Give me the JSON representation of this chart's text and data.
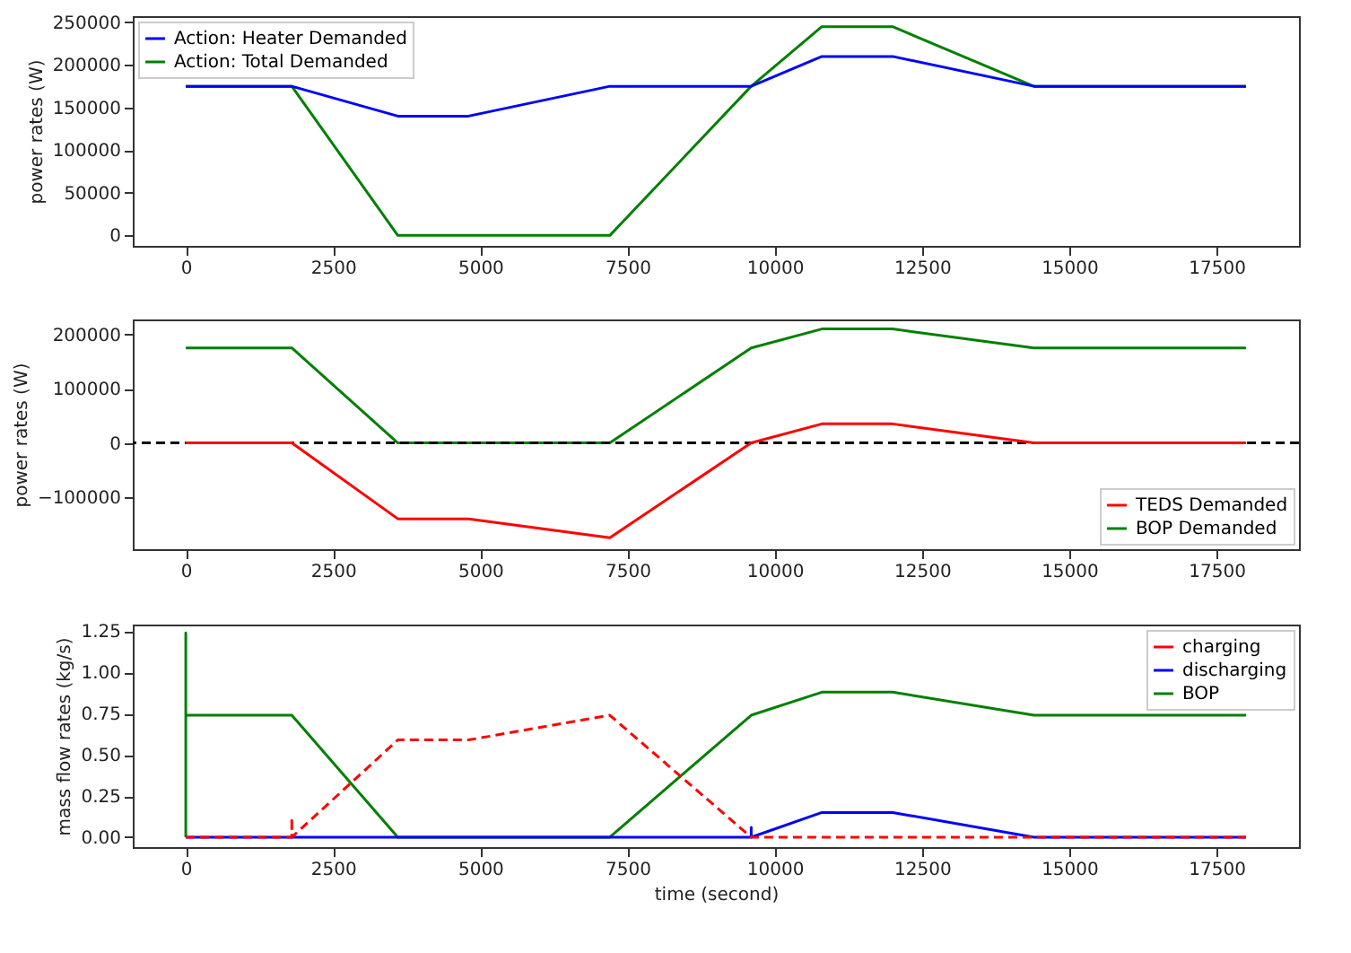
{
  "chart_data": [
    {
      "type": "line",
      "ylabel": "power rates (W)",
      "x": [
        0,
        1800,
        3600,
        4800,
        7200,
        9600,
        10800,
        12000,
        14400,
        18000
      ],
      "xlim": [
        -900,
        18900
      ],
      "xticks": [
        0,
        2500,
        5000,
        7500,
        10000,
        12500,
        15000,
        17500
      ],
      "ylim": [
        -12250,
        257250
      ],
      "yticks": [
        0,
        50000,
        100000,
        150000,
        200000,
        250000
      ],
      "grid": false,
      "legend": "top left",
      "line_style": "solid",
      "marker": "none",
      "series": [
        {
          "name": "Action: Heater Demanded",
          "color": "#0000ff",
          "values": [
            175000,
            175000,
            140000,
            140000,
            175000,
            175000,
            210000,
            210000,
            175000,
            175000
          ]
        },
        {
          "name": "Action: Total Demanded",
          "color": "#008000",
          "values": [
            175000,
            175000,
            0,
            0,
            0,
            175000,
            245000,
            245000,
            175000,
            175000
          ]
        }
      ]
    },
    {
      "type": "line",
      "ylabel": "power rates (W)",
      "x": [
        0,
        1800,
        3600,
        4800,
        7200,
        9600,
        10800,
        12000,
        14400,
        18000
      ],
      "xlim": [
        -900,
        18900
      ],
      "xticks": [
        0,
        2500,
        5000,
        7500,
        10000,
        12500,
        15000,
        17500
      ],
      "ylim": [
        -196000,
        227500
      ],
      "yticks": [
        -100000,
        0,
        100000,
        200000
      ],
      "grid": false,
      "legend": "bottom right",
      "line_style": "solid",
      "marker": "none",
      "ref_lines": [
        {
          "axis": "y",
          "value": 0,
          "color": "#000000",
          "line_style": "dashed"
        }
      ],
      "series": [
        {
          "name": "TEDS Demanded",
          "color": "#ff0000",
          "values": [
            0,
            0,
            -140000,
            -140000,
            -175000,
            0,
            35000,
            35000,
            0,
            0
          ]
        },
        {
          "name": "BOP Demanded",
          "color": "#008000",
          "values": [
            175000,
            175000,
            0,
            0,
            0,
            175000,
            210000,
            210000,
            175000,
            175000
          ]
        }
      ]
    },
    {
      "type": "line",
      "xlabel": "time (second)",
      "ylabel": "mass flow rates (kg/s)",
      "xlim": [
        -900,
        18900
      ],
      "xticks": [
        0,
        2500,
        5000,
        7500,
        10000,
        12500,
        15000,
        17500
      ],
      "ylim": [
        -0.06,
        1.29
      ],
      "yticks": [
        {
          "value": 0,
          "label": "0.00"
        },
        {
          "value": 0.25,
          "label": "0.25"
        },
        {
          "value": 0.5,
          "label": "0.50"
        },
        {
          "value": 0.75,
          "label": "0.75"
        },
        {
          "value": 1,
          "label": "1.00"
        },
        {
          "value": 1.25,
          "label": "1.25"
        }
      ],
      "grid": false,
      "legend": "top right",
      "marker": "none",
      "series": [
        {
          "name": "charging",
          "color": "#ff0000",
          "line_style": "dashed",
          "x": [
            0,
            1800,
            1800,
            1800,
            3600,
            4800,
            7200,
            9600,
            18000
          ],
          "values": [
            0,
            0,
            0.12,
            0,
            0.59,
            0.59,
            0.74,
            0,
            0
          ]
        },
        {
          "name": "discharging",
          "color": "#0000ff",
          "line_style": "solid",
          "x": [
            0,
            9600,
            9600,
            9600,
            10800,
            12000,
            14400,
            18000
          ],
          "values": [
            0,
            0,
            0.06,
            0,
            0.15,
            0.15,
            0,
            0
          ]
        },
        {
          "name": "BOP",
          "color": "#008000",
          "line_style": "solid",
          "x": [
            0,
            0,
            0,
            1800,
            3600,
            7200,
            9600,
            10800,
            12000,
            14400,
            18000
          ],
          "values": [
            0,
            1.24,
            0.74,
            0.74,
            0,
            0,
            0.74,
            0.88,
            0.88,
            0.74,
            0.74
          ]
        }
      ]
    }
  ]
}
